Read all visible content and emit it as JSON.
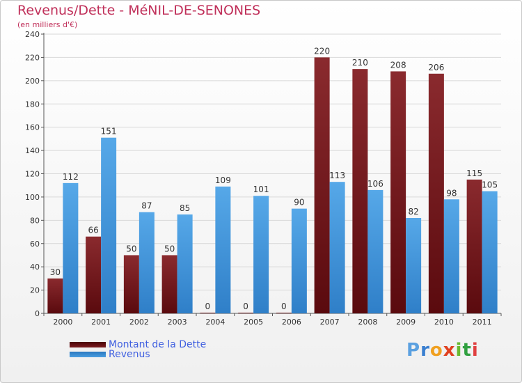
{
  "chart_data": {
    "type": "bar",
    "title": "Revenus/Dette - MéNIL-DE-SENONES",
    "subtitle": "(en milliers d'€)",
    "categories": [
      "2000",
      "2001",
      "2002",
      "2003",
      "2004",
      "2005",
      "2006",
      "2007",
      "2008",
      "2009",
      "2010",
      "2011"
    ],
    "series": [
      {
        "name": "Montant de la Dette",
        "color": "#7a1b1f",
        "values": [
          30,
          66,
          50,
          50,
          0,
          0,
          0,
          220,
          210,
          208,
          206,
          115
        ]
      },
      {
        "name": "Revenus",
        "color": "#4a9de0",
        "values": [
          112,
          151,
          87,
          85,
          109,
          101,
          90,
          113,
          106,
          82,
          98,
          105
        ]
      }
    ],
    "ylim": [
      0,
      240
    ],
    "yticks": [
      0,
      20,
      40,
      60,
      80,
      100,
      120,
      140,
      160,
      180,
      200,
      220,
      240
    ],
    "grid": true,
    "legend": "bottom-left"
  },
  "logo": {
    "text": "Proxiti",
    "colors": [
      "#5aa0e0",
      "#3a7fd0",
      "#f0a020",
      "#e04020",
      "#6aba30",
      "#30a040",
      "#e04040"
    ]
  }
}
